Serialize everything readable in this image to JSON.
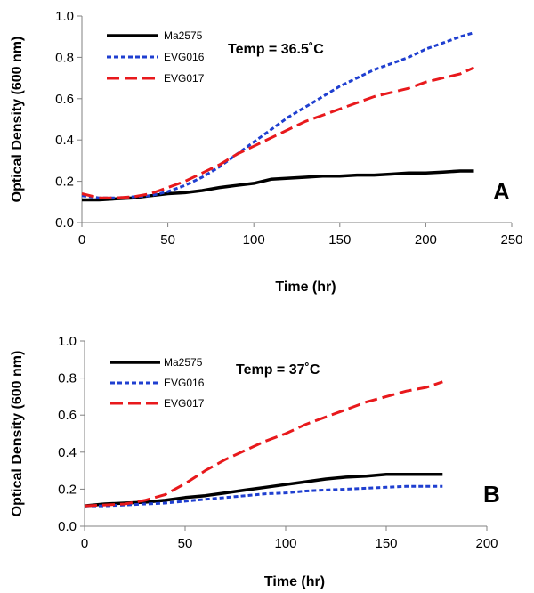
{
  "chart_data": [
    {
      "type": "line",
      "panel_label": "A",
      "annotation": "Temp = 36.5˚C",
      "xlabel": "Time (hr)",
      "ylabel": "Optical Density (600 nm)",
      "xlim": [
        0,
        250
      ],
      "ylim": [
        0,
        1.0
      ],
      "xticks": [
        0,
        50,
        100,
        150,
        200,
        250
      ],
      "yticks": [
        0.0,
        0.2,
        0.4,
        0.6,
        0.8,
        1.0
      ],
      "xtick_labels": [
        "0",
        "50",
        "100",
        "150",
        "200",
        "250"
      ],
      "ytick_labels": [
        "0.0",
        "0.2",
        "0.4",
        "0.6",
        "0.8",
        "1.0"
      ],
      "grid": false,
      "legend_position": "top-left",
      "series": [
        {
          "name": "Ma2575",
          "color": "#000000",
          "style": "solid",
          "x": [
            0,
            10,
            20,
            30,
            40,
            50,
            60,
            70,
            80,
            90,
            100,
            110,
            120,
            130,
            140,
            150,
            160,
            170,
            180,
            190,
            200,
            210,
            220,
            228
          ],
          "y": [
            0.11,
            0.11,
            0.115,
            0.12,
            0.13,
            0.14,
            0.145,
            0.155,
            0.17,
            0.18,
            0.19,
            0.21,
            0.215,
            0.22,
            0.225,
            0.225,
            0.23,
            0.23,
            0.235,
            0.24,
            0.24,
            0.245,
            0.25,
            0.25
          ]
        },
        {
          "name": "EVG016",
          "color": "#1f3fd0",
          "style": "dotted",
          "x": [
            0,
            10,
            20,
            30,
            40,
            50,
            60,
            70,
            80,
            90,
            100,
            110,
            120,
            130,
            140,
            150,
            160,
            170,
            180,
            190,
            200,
            210,
            220,
            228
          ],
          "y": [
            0.13,
            0.12,
            0.12,
            0.125,
            0.13,
            0.15,
            0.18,
            0.22,
            0.27,
            0.33,
            0.39,
            0.45,
            0.51,
            0.56,
            0.61,
            0.66,
            0.7,
            0.74,
            0.77,
            0.8,
            0.84,
            0.87,
            0.9,
            0.92
          ]
        },
        {
          "name": "EVG017",
          "color": "#e8191c",
          "style": "dashed",
          "x": [
            0,
            10,
            20,
            30,
            40,
            50,
            60,
            70,
            80,
            90,
            100,
            110,
            120,
            130,
            140,
            150,
            160,
            170,
            180,
            190,
            200,
            210,
            220,
            228
          ],
          "y": [
            0.14,
            0.12,
            0.12,
            0.125,
            0.14,
            0.17,
            0.2,
            0.24,
            0.28,
            0.33,
            0.37,
            0.41,
            0.45,
            0.49,
            0.52,
            0.55,
            0.58,
            0.61,
            0.63,
            0.65,
            0.68,
            0.7,
            0.72,
            0.75
          ]
        }
      ]
    },
    {
      "type": "line",
      "panel_label": "B",
      "annotation": "Temp = 37˚C",
      "xlabel": "Time (hr)",
      "ylabel": "Optical Density (600 nm)",
      "xlim": [
        0,
        200
      ],
      "ylim": [
        0,
        1.0
      ],
      "xticks": [
        0,
        50,
        100,
        150,
        200
      ],
      "yticks": [
        0.0,
        0.2,
        0.4,
        0.6,
        0.8,
        1.0
      ],
      "xtick_labels": [
        "0",
        "50",
        "100",
        "150",
        "200"
      ],
      "ytick_labels": [
        "0.0",
        "0.2",
        "0.4",
        "0.6",
        "0.8",
        "1.0"
      ],
      "grid": false,
      "legend_position": "top-left",
      "series": [
        {
          "name": "Ma2575",
          "color": "#000000",
          "style": "solid",
          "x": [
            0,
            10,
            20,
            30,
            40,
            50,
            60,
            70,
            80,
            90,
            100,
            110,
            120,
            130,
            140,
            150,
            160,
            170,
            178
          ],
          "y": [
            0.11,
            0.12,
            0.125,
            0.13,
            0.14,
            0.155,
            0.165,
            0.18,
            0.195,
            0.21,
            0.225,
            0.24,
            0.255,
            0.265,
            0.27,
            0.28,
            0.28,
            0.28,
            0.28
          ]
        },
        {
          "name": "EVG016",
          "color": "#1f3fd0",
          "style": "dotted",
          "x": [
            0,
            10,
            20,
            30,
            40,
            50,
            60,
            70,
            80,
            90,
            100,
            110,
            120,
            130,
            140,
            150,
            160,
            170,
            178
          ],
          "y": [
            0.11,
            0.11,
            0.115,
            0.12,
            0.125,
            0.135,
            0.145,
            0.155,
            0.165,
            0.175,
            0.18,
            0.19,
            0.195,
            0.2,
            0.205,
            0.21,
            0.215,
            0.215,
            0.215
          ]
        },
        {
          "name": "EVG017",
          "color": "#e8191c",
          "style": "dashed",
          "x": [
            0,
            10,
            20,
            30,
            40,
            50,
            60,
            70,
            80,
            90,
            100,
            110,
            120,
            130,
            140,
            150,
            160,
            170,
            178
          ],
          "y": [
            0.11,
            0.115,
            0.12,
            0.14,
            0.17,
            0.23,
            0.3,
            0.36,
            0.41,
            0.46,
            0.5,
            0.55,
            0.59,
            0.63,
            0.67,
            0.7,
            0.73,
            0.75,
            0.78
          ]
        }
      ]
    }
  ]
}
